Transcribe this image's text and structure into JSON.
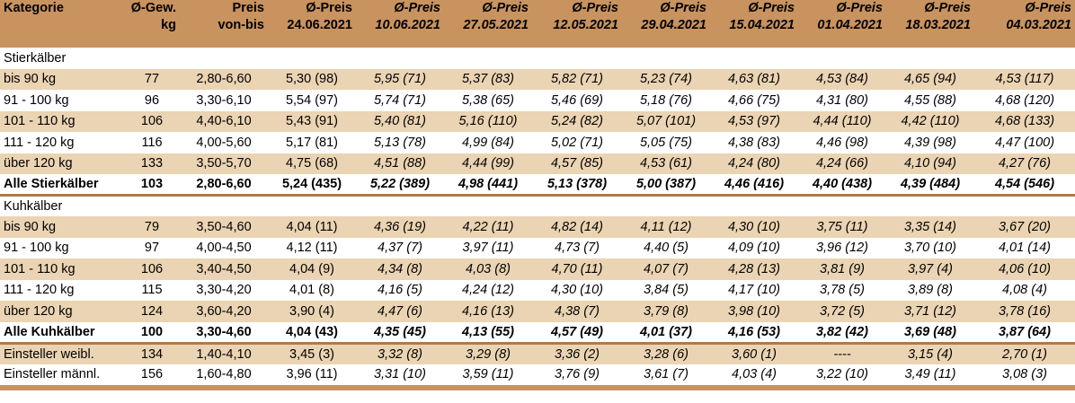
{
  "header": {
    "category": "Kategorie",
    "weight": [
      "Ø-Gew.",
      "kg"
    ],
    "range": [
      "Preis",
      "von-bis"
    ],
    "price_label": "Ø-Preis",
    "dates": [
      "24.06.2021",
      "10.06.2021",
      "27.05.2021",
      "12.05.2021",
      "29.04.2021",
      "15.04.2021",
      "01.04.2021",
      "18.03.2021",
      "04.03.2021"
    ]
  },
  "rows": [
    {
      "type": "section",
      "cells": [
        "Stierkälber"
      ]
    },
    {
      "type": "shade",
      "cells": [
        "bis 90 kg",
        "77",
        "2,80-6,60",
        "5,30 (98)",
        "5,95 (71)",
        "5,37 (83)",
        "5,82 (71)",
        "5,23 (74)",
        "4,63 (81)",
        "4,53 (84)",
        "4,65 (94)",
        "4,53 (117)"
      ]
    },
    {
      "type": "plain",
      "cells": [
        "91 - 100 kg",
        "96",
        "3,30-6,10",
        "5,54 (97)",
        "5,74 (71)",
        "5,38 (65)",
        "5,46 (69)",
        "5,18 (76)",
        "4,66 (75)",
        "4,31 (80)",
        "4,55 (88)",
        "4,68 (120)"
      ]
    },
    {
      "type": "shade",
      "cells": [
        "101 - 110 kg",
        "106",
        "4,40-6,10",
        "5,43 (91)",
        "5,40 (81)",
        "5,16 (110)",
        "5,24 (82)",
        "5,07 (101)",
        "4,53 (97)",
        "4,44 (110)",
        "4,42 (110)",
        "4,68 (133)"
      ]
    },
    {
      "type": "plain",
      "cells": [
        "111 - 120 kg",
        "116",
        "4,00-5,60",
        "5,17 (81)",
        "5,13 (78)",
        "4,99 (84)",
        "5,02 (71)",
        "5,05 (75)",
        "4,38 (83)",
        "4,46 (98)",
        "4,39 (98)",
        "4,47 (100)"
      ]
    },
    {
      "type": "shade",
      "cells": [
        "über 120 kg",
        "133",
        "3,50-5,70",
        "4,75 (68)",
        "4,51 (88)",
        "4,44 (99)",
        "4,57 (85)",
        "4,53 (61)",
        "4,24 (80)",
        "4,24 (66)",
        "4,10 (94)",
        "4,27 (76)"
      ]
    },
    {
      "type": "total",
      "cells": [
        "Alle Stierkälber",
        "103",
        "2,80-6,60",
        "5,24 (435)",
        "5,22 (389)",
        "4,98 (441)",
        "5,13 (378)",
        "5,00 (387)",
        "4,46 (416)",
        "4,40 (438)",
        "4,39 (484)",
        "4,54 (546)"
      ]
    },
    {
      "type": "section",
      "cells": [
        "Kuhkälber"
      ]
    },
    {
      "type": "shade",
      "cells": [
        "bis 90 kg",
        "79",
        "3,50-4,60",
        "4,04 (11)",
        "4,36 (19)",
        "4,22 (11)",
        "4,82 (14)",
        "4,11 (12)",
        "4,30 (10)",
        "3,75 (11)",
        "3,35 (14)",
        "3,67 (20)"
      ]
    },
    {
      "type": "plain",
      "cells": [
        "91 - 100 kg",
        "97",
        "4,00-4,50",
        "4,12 (11)",
        "4,37 (7)",
        "3,97 (11)",
        "4,73 (7)",
        "4,40 (5)",
        "4,09 (10)",
        "3,96 (12)",
        "3,70 (10)",
        "4,01 (14)"
      ]
    },
    {
      "type": "shade",
      "cells": [
        "101 - 110 kg",
        "106",
        "3,40-4,50",
        "4,04 (9)",
        "4,34 (8)",
        "4,03 (8)",
        "4,70 (11)",
        "4,07 (7)",
        "4,28 (13)",
        "3,81 (9)",
        "3,97 (4)",
        "4,06 (10)"
      ]
    },
    {
      "type": "plain",
      "cells": [
        "111 - 120 kg",
        "115",
        "3,30-4,20",
        "4,01 (8)",
        "4,16 (5)",
        "4,24 (12)",
        "4,30 (10)",
        "3,84 (5)",
        "4,17 (10)",
        "3,78 (5)",
        "3,89 (8)",
        "4,08 (4)"
      ]
    },
    {
      "type": "shade",
      "cells": [
        "über 120 kg",
        "124",
        "3,60-4,20",
        "3,90 (4)",
        "4,47 (6)",
        "4,16 (13)",
        "4,38 (7)",
        "3,79 (8)",
        "3,98 (10)",
        "3,72 (5)",
        "3,71 (12)",
        "3,78 (16)"
      ]
    },
    {
      "type": "total",
      "cells": [
        "Alle Kuhkälber",
        "100",
        "3,30-4,60",
        "4,04 (43)",
        "4,35 (45)",
        "4,13 (55)",
        "4,57 (49)",
        "4,01 (37)",
        "4,16 (53)",
        "3,82 (42)",
        "3,69 (48)",
        "3,87 (64)"
      ]
    },
    {
      "type": "shade",
      "cells": [
        "Einsteller weibl.",
        "134",
        "1,40-4,10",
        "3,45 (3)",
        "3,32 (8)",
        "3,29 (8)",
        "3,36 (2)",
        "3,28 (6)",
        "3,60 (1)",
        "----",
        "3,15 (4)",
        "2,70 (1)"
      ]
    },
    {
      "type": "plain",
      "cells": [
        "Einsteller männl.",
        "156",
        "1,60-4,80",
        "3,96 (11)",
        "3,31 (10)",
        "3,59 (11)",
        "3,76 (9)",
        "3,61 (7)",
        "4,03 (4)",
        "3,22 (10)",
        "3,49 (11)",
        "3,08 (3)"
      ]
    },
    {
      "type": "sep",
      "cells": []
    }
  ]
}
